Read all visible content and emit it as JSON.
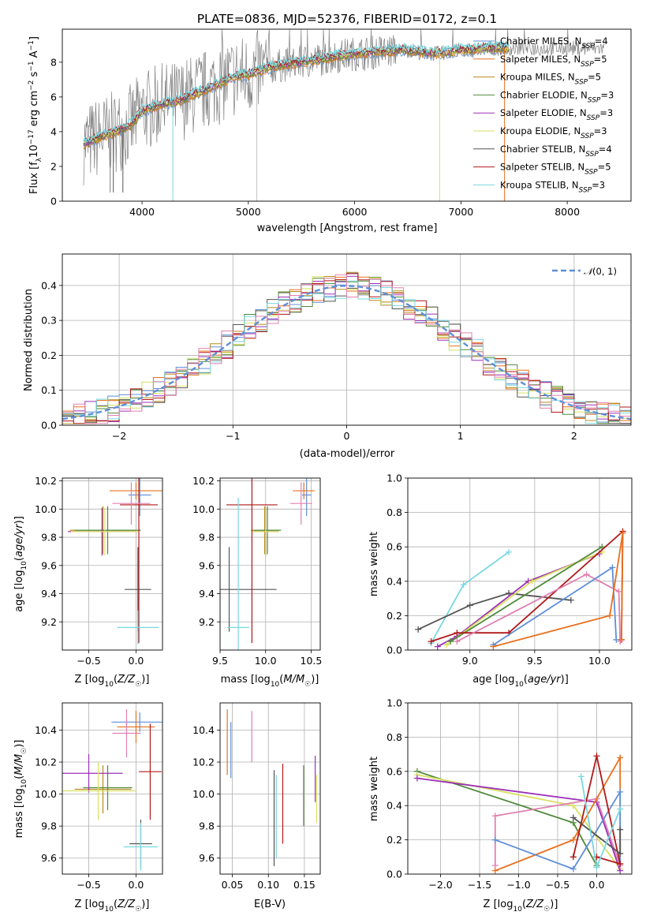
{
  "figure_title": "PLATE=0836, MJD=52376, FIBERID=0172, z=0.1",
  "colors": {
    "Chabrier MILES": "#5f8fd8",
    "Salpeter MILES": "#e8701e",
    "Kroupa MILES": "#b88b1c",
    "Chabrier ELODIE": "#4f8a3a",
    "Salpeter ELODIE": "#9b30b8",
    "Kroupa ELODIE": "#d8e060",
    "Chabrier STELIB": "#555555",
    "Salpeter STELIB": "#b01818",
    "Kroupa STELIB": "#78d8e0",
    "Normal": "#5f8fd8",
    "grid": "#b0b0b0"
  },
  "chart_data": [
    {
      "id": "spectrum",
      "type": "line",
      "xlabel": "wavelength [Angstrom, rest frame]",
      "ylabel": "Flux [f_λ10^-17 erg cm^-2 s^-1 A^-1]",
      "xlim": [
        3250,
        8600
      ],
      "ylim": [
        0,
        9.9
      ],
      "xticks": [
        4000,
        5000,
        6000,
        7000,
        8000
      ],
      "yticks": [
        0,
        2,
        4,
        6,
        8
      ],
      "grid": false,
      "legend_position": "right",
      "data_spectrum": {
        "x": [
          3450,
          3500,
          3600,
          3700,
          3800,
          3900,
          4000,
          4100,
          4200,
          4300,
          4400,
          4500,
          4600,
          4700,
          4800,
          4900,
          5000,
          5100,
          5200,
          5300,
          5400,
          5500,
          5600,
          5700,
          5800,
          5900,
          6000,
          6100,
          6200,
          6300,
          6400,
          6500,
          6600,
          6700,
          6800,
          6900,
          7000,
          7100,
          7200,
          7300,
          7400,
          7450
        ],
        "y": [
          3.3,
          3.4,
          3.7,
          3.9,
          4.1,
          4.4,
          5.2,
          5.4,
          5.6,
          5.7,
          5.9,
          6.2,
          6.4,
          6.7,
          7.0,
          7.2,
          7.3,
          7.5,
          7.7,
          7.8,
          7.9,
          8.0,
          8.1,
          8.2,
          8.3,
          8.4,
          8.5,
          8.5,
          8.6,
          8.6,
          8.7,
          8.7,
          8.6,
          8.5,
          8.5,
          8.6,
          8.7,
          8.7,
          8.8,
          8.8,
          8.8,
          8.8
        ]
      },
      "model_series": [
        {
          "name": "Chabrier MILES, N_SSP=4"
        },
        {
          "name": "Salpeter MILES, N_SSP=5"
        },
        {
          "name": "Kroupa MILES, N_SSP=5"
        },
        {
          "name": "Chabrier ELODIE, N_SSP=3"
        },
        {
          "name": "Salpeter ELODIE, N_SSP=3"
        },
        {
          "name": "Kroupa ELODIE, N_SSP=3"
        },
        {
          "name": "Chabrier STELIB, N_SSP=4"
        },
        {
          "name": "Salpeter STELIB, N_SSP=5"
        },
        {
          "name": "Kroupa STELIB, N_SSP=3"
        }
      ]
    },
    {
      "id": "residuals",
      "type": "line",
      "xlabel": "(data-model)/error",
      "ylabel": "Normed distribution",
      "xlim": [
        -2.5,
        2.5
      ],
      "ylim": [
        0,
        0.49
      ],
      "xticks": [
        -2,
        -1,
        0,
        1,
        2
      ],
      "yticks": [
        0.0,
        0.1,
        0.2,
        0.3,
        0.4
      ],
      "grid": true,
      "legend_position": "top-right",
      "legend": [
        "N(0,1)"
      ],
      "histogram_bin_width": 0.1,
      "histogram_start": -2.5
    },
    {
      "id": "age_vs_Z",
      "type": "scatter",
      "xlabel": "Z [log10(Z/Z☉)]",
      "ylabel": "age  [log10(age/yr)]",
      "xlim": [
        -0.78,
        0.28
      ],
      "ylim": [
        9.0,
        10.22
      ],
      "xticks": [
        -0.5,
        0.0
      ],
      "yticks": [
        9.2,
        9.4,
        9.6,
        9.8,
        10.0,
        10.2
      ],
      "grid": true,
      "points": [
        {
          "series": "Chabrier MILES",
          "x": 0.04,
          "xerr": 0.12,
          "y": 10.1,
          "yerr": 0.15
        },
        {
          "series": "Salpeter MILES",
          "x": 0.0,
          "xerr": 0.28,
          "y": 10.13,
          "yerr": 0.06
        },
        {
          "series": "Kroupa MILES",
          "x": -0.35,
          "xerr": 0.35,
          "y": 9.85,
          "yerr": 0.17
        },
        {
          "series": "Chabrier ELODIE",
          "x": -0.3,
          "xerr": 0.35,
          "y": 9.85,
          "yerr": 0.17
        },
        {
          "series": "Salpeter ELODIE",
          "x": -0.36,
          "xerr": 0.36,
          "y": 9.84,
          "yerr": 0.17
        },
        {
          "series": "Kroupa ELODIE",
          "x": -0.33,
          "xerr": 0.36,
          "y": 9.84,
          "yerr": 0.17
        },
        {
          "series": "Chabrier STELIB",
          "x": 0.02,
          "xerr": 0.14,
          "y": 9.43,
          "yerr": 0.3
        },
        {
          "series": "Salpeter STELIB",
          "x": 0.03,
          "xerr": 0.2,
          "y": 10.03,
          "yerr": 0.98
        },
        {
          "series": "Kroupa STELIB",
          "x": 0.02,
          "xerr": 0.22,
          "y": 9.16,
          "yerr": 0.12
        },
        {
          "series": "Pink",
          "x": -0.05,
          "xerr": 0.2,
          "y": 10.04,
          "yerr": 0.15
        }
      ]
    },
    {
      "id": "age_vs_mass",
      "type": "scatter",
      "xlabel": "mass [log10(M/M☉)]",
      "ylabel": "",
      "xlim": [
        9.5,
        10.6
      ],
      "ylim": [
        9.0,
        10.22
      ],
      "xticks": [
        9.5,
        10.0,
        10.5
      ],
      "yticks": [
        9.2,
        9.4,
        9.6,
        9.8,
        10.0,
        10.2
      ],
      "grid": true,
      "points": [
        {
          "series": "Chabrier MILES",
          "x": 10.45,
          "xerr": 0.05,
          "y": 10.1,
          "yerr": 0.15
        },
        {
          "series": "Salpeter MILES",
          "x": 10.42,
          "xerr": 0.12,
          "y": 10.13,
          "yerr": 0.06
        },
        {
          "series": "Kroupa MILES",
          "x": 9.99,
          "xerr": 0.15,
          "y": 9.85,
          "yerr": 0.17
        },
        {
          "series": "Chabrier ELODIE",
          "x": 10.02,
          "xerr": 0.15,
          "y": 9.85,
          "yerr": 0.17
        },
        {
          "series": "Salpeter ELODIE",
          "x": 10.0,
          "xerr": 0.14,
          "y": 9.84,
          "yerr": 0.17
        },
        {
          "series": "Kroupa ELODIE",
          "x": 10.0,
          "xerr": 0.15,
          "y": 9.84,
          "yerr": 0.17
        },
        {
          "series": "Chabrier STELIB",
          "x": 9.6,
          "xerr": 0.52,
          "y": 9.43,
          "yerr": 0.3
        },
        {
          "series": "Salpeter STELIB",
          "x": 9.85,
          "xerr": 0.28,
          "y": 10.03,
          "yerr": 0.98
        },
        {
          "series": "Kroupa STELIB",
          "x": 9.7,
          "xerr": 0.12,
          "y": 9.16,
          "yerr": 0.92
        },
        {
          "series": "Pink",
          "x": 10.39,
          "xerr": 0.12,
          "y": 10.04,
          "yerr": 0.15
        }
      ]
    },
    {
      "id": "weight_vs_age",
      "type": "line",
      "xlabel": "age  [log10(age/yr)]",
      "ylabel": "mass weight",
      "xlim": [
        8.52,
        10.25
      ],
      "ylim": [
        0.0,
        1.0
      ],
      "xticks": [
        9.0,
        9.5,
        10.0
      ],
      "yticks": [
        0.0,
        0.2,
        0.4,
        0.6,
        0.8,
        1.0
      ],
      "grid": true,
      "series": [
        {
          "color_key": "Kroupa STELIB",
          "x": [
            8.7,
            8.95,
            9.3
          ],
          "y": [
            0.04,
            0.38,
            0.57
          ]
        },
        {
          "color_key": "Chabrier STELIB",
          "x": [
            8.6,
            9.0,
            9.3,
            9.78
          ],
          "y": [
            0.12,
            0.26,
            0.33,
            0.29
          ]
        },
        {
          "color_key": "Salpeter ELODIE",
          "x": [
            8.75,
            8.9,
            9.45,
            10.0
          ],
          "y": [
            0.02,
            0.08,
            0.4,
            0.56
          ]
        },
        {
          "color_key": "Kroupa ELODIE",
          "x": [
            8.82,
            9.48,
            10.02
          ],
          "y": [
            0.03,
            0.4,
            0.57
          ]
        },
        {
          "color_key": "Chabrier ELODIE",
          "x": [
            8.85,
            10.02
          ],
          "y": [
            0.05,
            0.6
          ]
        },
        {
          "color_key": "Salpeter STELIB",
          "x": [
            8.7,
            8.9,
            9.3,
            10.18,
            10.17
          ],
          "y": [
            0.05,
            0.1,
            0.1,
            0.69,
            0.06
          ]
        },
        {
          "color_key": "Pink",
          "x": [
            8.9,
            9.9,
            10.15,
            10.16
          ],
          "y": [
            0.05,
            0.44,
            0.34,
            0.05
          ]
        },
        {
          "color_key": "Chabrier MILES",
          "x": [
            9.18,
            10.1,
            10.13
          ],
          "y": [
            0.03,
            0.48,
            0.06
          ]
        },
        {
          "color_key": "Salpeter MILES",
          "x": [
            9.18,
            10.08,
            10.18,
            10.17
          ],
          "y": [
            0.02,
            0.2,
            0.68,
            0.06
          ]
        }
      ]
    },
    {
      "id": "mass_vs_Z",
      "type": "scatter",
      "xlabel": "Z [log10(Z/Z☉)]",
      "ylabel": "mass [log10(M/M☉)]",
      "xlim": [
        -0.78,
        0.28
      ],
      "ylim": [
        9.5,
        10.57
      ],
      "xticks": [
        -0.5,
        0.0
      ],
      "yticks": [
        9.6,
        9.8,
        10.0,
        10.2,
        10.4
      ],
      "grid": true,
      "points": [
        {
          "series": "Chabrier MILES",
          "x": 0.04,
          "xerr": 0.3,
          "y": 10.45,
          "yerr": 0.06
        },
        {
          "series": "Salpeter MILES",
          "x": 0.0,
          "xerr": 0.2,
          "y": 10.42,
          "yerr": 0.1
        },
        {
          "series": "Kroupa MILES",
          "x": -0.35,
          "xerr": 0.3,
          "y": 10.03,
          "yerr": 0.15
        },
        {
          "series": "Chabrier ELODIE",
          "x": -0.3,
          "xerr": 0.26,
          "y": 10.04,
          "yerr": 0.14
        },
        {
          "series": "Salpeter ELODIE",
          "x": -0.5,
          "xerr": 0.36,
          "y": 10.13,
          "yerr": 0.12
        },
        {
          "series": "Kroupa ELODIE",
          "x": -0.4,
          "xerr": 0.4,
          "y": 10.02,
          "yerr": 0.18
        },
        {
          "series": "Chabrier STELIB",
          "x": 0.05,
          "xerr": 0.12,
          "y": 9.69,
          "yerr": 0.15
        },
        {
          "series": "Salpeter STELIB",
          "x": 0.15,
          "xerr": 0.12,
          "y": 10.14,
          "yerr": 0.3
        },
        {
          "series": "Kroupa STELIB",
          "x": 0.05,
          "xerr": 0.18,
          "y": 9.67,
          "yerr": 0.15
        },
        {
          "series": "Pink",
          "x": -0.1,
          "xerr": 0.15,
          "y": 10.38,
          "yerr": 0.15
        }
      ]
    },
    {
      "id": "EBV",
      "type": "scatter",
      "xlabel": "E(B-V)",
      "ylabel": "",
      "xlim": [
        0.033,
        0.172
      ],
      "ylim": [
        9.5,
        10.57
      ],
      "xticks": [
        0.05,
        0.1,
        0.15
      ],
      "yticks": [
        9.6,
        9.8,
        10.0,
        10.2,
        10.4
      ],
      "grid": true,
      "segments": [
        {
          "color_key": "Salpeter MILES",
          "x": 0.043,
          "y": [
            10.12,
            10.53
          ]
        },
        {
          "color_key": "Chabrier MILES",
          "x": 0.048,
          "y": [
            10.1,
            10.45
          ]
        },
        {
          "color_key": "Pink",
          "x": 0.077,
          "y": [
            10.2,
            10.52
          ]
        },
        {
          "color_key": "Chabrier STELIB",
          "x": 0.108,
          "y": [
            9.55,
            10.15
          ]
        },
        {
          "color_key": "Kroupa STELIB",
          "x": 0.111,
          "y": [
            9.6,
            10.12
          ]
        },
        {
          "color_key": "Salpeter STELIB",
          "x": 0.12,
          "y": [
            9.69,
            10.19
          ]
        },
        {
          "color_key": "Chabrier ELODIE",
          "x": 0.149,
          "y": [
            9.8,
            10.18
          ]
        },
        {
          "color_key": "Kroupa ELODIE",
          "x": 0.167,
          "y": [
            9.82,
            10.12
          ]
        },
        {
          "color_key": "Salpeter ELODIE",
          "x": 0.165,
          "y": [
            9.95,
            10.24
          ]
        }
      ]
    },
    {
      "id": "weight_vs_Z",
      "type": "line",
      "xlabel": "Z [log10(Z/Z☉)]",
      "ylabel": "mass weight",
      "xlim": [
        -2.42,
        0.45
      ],
      "ylim": [
        0.0,
        1.0
      ],
      "xticks": [
        -2.0,
        -1.5,
        -1.0,
        -0.5,
        0.0
      ],
      "yticks": [
        0.0,
        0.2,
        0.4,
        0.6,
        0.8,
        1.0
      ],
      "grid": true,
      "series": [
        {
          "color_key": "Chabrier ELODIE",
          "x": [
            -2.3,
            -0.3,
            0.0
          ],
          "y": [
            0.6,
            0.3,
            0.05
          ]
        },
        {
          "color_key": "Kroupa ELODIE",
          "x": [
            -2.3,
            -0.3,
            0.3
          ],
          "y": [
            0.58,
            0.4,
            0.03
          ]
        },
        {
          "color_key": "Salpeter ELODIE",
          "x": [
            -2.3,
            0.0,
            0.3
          ],
          "y": [
            0.56,
            0.42,
            0.02
          ]
        },
        {
          "color_key": "Pink",
          "x": [
            -1.3,
            -1.3,
            0.0,
            0.3
          ],
          "y": [
            0.05,
            0.34,
            0.44,
            0.05
          ]
        },
        {
          "color_key": "Salpeter MILES",
          "x": [
            -1.3,
            -0.3,
            0.3,
            0.3
          ],
          "y": [
            0.02,
            0.2,
            0.68,
            0.06
          ]
        },
        {
          "color_key": "Chabrier MILES",
          "x": [
            -1.3,
            -0.3,
            0.3,
            0.3
          ],
          "y": [
            0.2,
            0.03,
            0.48,
            0.06
          ]
        },
        {
          "color_key": "Salpeter STELIB",
          "x": [
            -0.3,
            0.0,
            0.3,
            0.0
          ],
          "y": [
            0.1,
            0.69,
            0.06,
            0.1
          ]
        },
        {
          "color_key": "Chabrier STELIB",
          "x": [
            -0.3,
            0.3,
            0.3
          ],
          "y": [
            0.33,
            0.12,
            0.26
          ]
        },
        {
          "color_key": "Kroupa STELIB",
          "x": [
            -0.2,
            0.0,
            0.3
          ],
          "y": [
            0.57,
            0.04,
            0.38
          ]
        }
      ]
    }
  ]
}
